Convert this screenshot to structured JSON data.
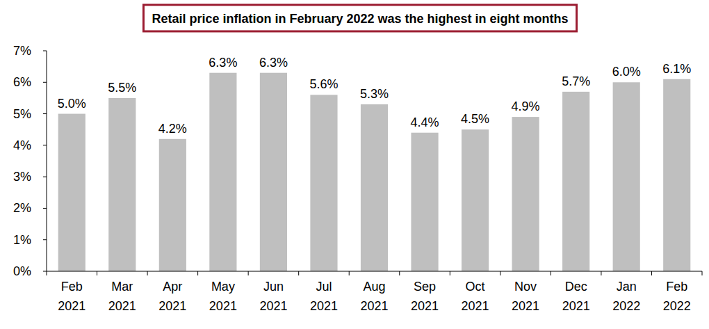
{
  "chart_data": {
    "type": "bar",
    "title": "Retail price inflation in February 2022 was the highest in eight months",
    "categories": [
      "Feb 2021",
      "Mar 2021",
      "Apr 2021",
      "May 2021",
      "Jun 2021",
      "Jul 2021",
      "Aug 2021",
      "Sep 2021",
      "Oct 2021",
      "Nov 2021",
      "Dec 2021",
      "Jan 2022",
      "Feb 2022"
    ],
    "values": [
      5.0,
      5.5,
      4.2,
      6.3,
      6.3,
      5.6,
      5.3,
      4.4,
      4.5,
      4.9,
      5.7,
      6.0,
      6.1
    ],
    "value_labels": [
      "5.0%",
      "5.5%",
      "4.2%",
      "6.3%",
      "6.3%",
      "5.6%",
      "5.3%",
      "4.4%",
      "4.5%",
      "4.9%",
      "5.7%",
      "6.0%",
      "6.1%"
    ],
    "color": "#bfbfbf",
    "ylim": [
      0,
      7
    ],
    "yticks": [
      {
        "value": 0,
        "label": "0%"
      },
      {
        "value": 1,
        "label": "1%"
      },
      {
        "value": 2,
        "label": "2%"
      },
      {
        "value": 3,
        "label": "3%"
      },
      {
        "value": 4,
        "label": "4%"
      },
      {
        "value": 5,
        "label": "5%"
      },
      {
        "value": 6,
        "label": "6%"
      },
      {
        "value": 7,
        "label": "7%"
      }
    ],
    "grid": false,
    "data_labels": true
  }
}
